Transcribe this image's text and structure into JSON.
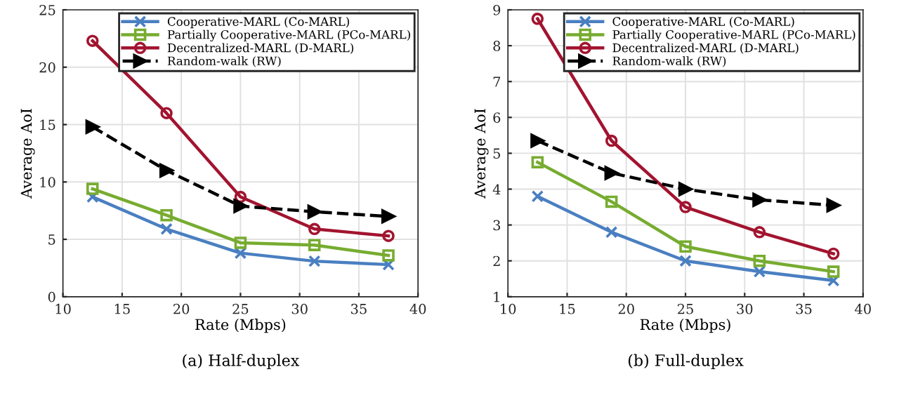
{
  "chart_data": [
    {
      "type": "line",
      "title": "(a) Half-duplex",
      "xlabel": "Rate (Mbps)",
      "ylabel": "Average AoI",
      "x": [
        12.5,
        18.75,
        25,
        31.25,
        37.5
      ],
      "xlim": [
        10,
        40
      ],
      "xticks": [
        10,
        15,
        20,
        25,
        30,
        35,
        40
      ],
      "ylim": [
        0,
        25
      ],
      "yticks": [
        0,
        5,
        10,
        15,
        20,
        25
      ],
      "grid": true,
      "legend": "top right",
      "series": [
        {
          "name": "Cooperative-MARL (Co-MARL)",
          "color": "#4a7fc1",
          "marker": "cross",
          "line_style": "solid",
          "values": [
            8.7,
            5.9,
            3.8,
            3.1,
            2.8
          ]
        },
        {
          "name": "Partially Cooperative-MARL (PCo-MARL)",
          "color": "#77ac30",
          "marker": "square",
          "line_style": "solid",
          "values": [
            9.4,
            7.1,
            4.7,
            4.5,
            3.6
          ]
        },
        {
          "name": "Decentralized-MARL (D-MARL)",
          "color": "#a2142f",
          "marker": "circle",
          "line_style": "solid",
          "values": [
            22.3,
            16.0,
            8.7,
            5.9,
            5.3
          ]
        },
        {
          "name": "Random-walk (RW)",
          "color": "#000000",
          "marker": "triangle",
          "line_style": "dashed",
          "values": [
            14.8,
            11.0,
            7.9,
            7.4,
            7.0
          ]
        }
      ]
    },
    {
      "type": "line",
      "title": "(b) Full-duplex",
      "xlabel": "Rate (Mbps)",
      "ylabel": "Average AoI",
      "x": [
        12.5,
        18.75,
        25,
        31.25,
        37.5
      ],
      "xlim": [
        10,
        40
      ],
      "xticks": [
        10,
        15,
        20,
        25,
        30,
        35,
        40
      ],
      "ylim": [
        1,
        9
      ],
      "yticks": [
        1,
        2,
        3,
        4,
        5,
        6,
        7,
        8,
        9
      ],
      "grid": true,
      "legend": "top right",
      "series": [
        {
          "name": "Cooperative-MARL (Co-MARL)",
          "color": "#4a7fc1",
          "marker": "cross",
          "line_style": "solid",
          "values": [
            3.8,
            2.8,
            2.0,
            1.7,
            1.45
          ]
        },
        {
          "name": "Partially Cooperative-MARL (PCo-MARL)",
          "color": "#77ac30",
          "marker": "square",
          "line_style": "solid",
          "values": [
            4.75,
            3.65,
            2.4,
            2.0,
            1.7
          ]
        },
        {
          "name": "Decentralized-MARL (D-MARL)",
          "color": "#a2142f",
          "marker": "circle",
          "line_style": "solid",
          "values": [
            8.75,
            5.35,
            3.5,
            2.8,
            2.2
          ]
        },
        {
          "name": "Random-walk (RW)",
          "color": "#000000",
          "marker": "triangle",
          "line_style": "dashed",
          "values": [
            5.35,
            4.45,
            4.0,
            3.7,
            3.55
          ]
        }
      ]
    }
  ]
}
